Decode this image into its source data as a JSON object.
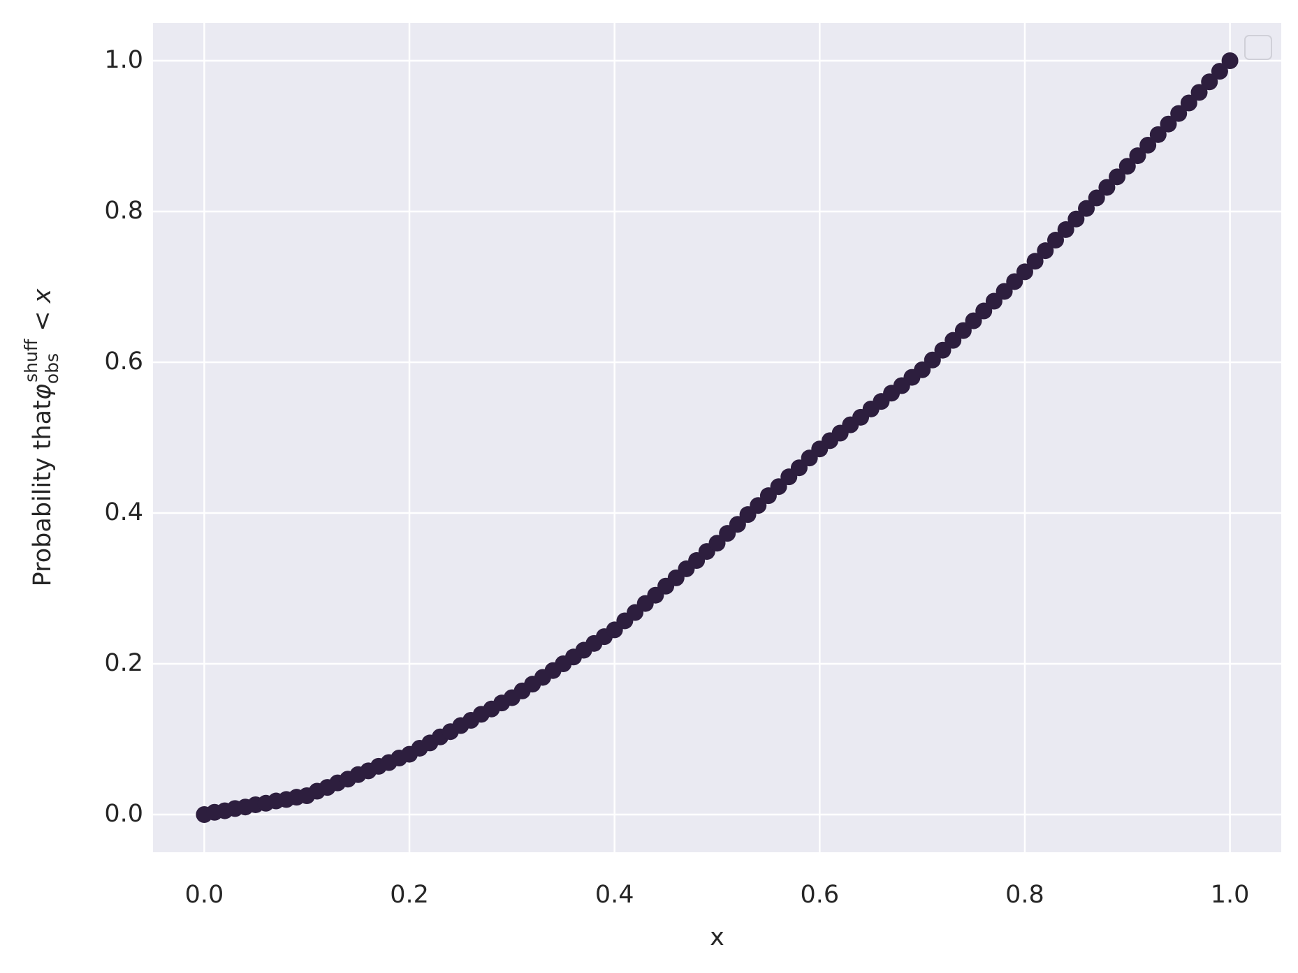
{
  "chart_data": {
    "type": "scatter",
    "xlabel": "x",
    "ylabel": {
      "text": "Probability that",
      "symbol": "φ",
      "sub": "obs",
      "sup": "shuff",
      "rest": " < x"
    },
    "x": [
      0,
      0.01,
      0.02,
      0.03,
      0.04,
      0.05,
      0.06,
      0.07,
      0.08,
      0.09,
      0.1,
      0.11,
      0.12,
      0.13,
      0.14,
      0.15,
      0.16,
      0.17,
      0.18,
      0.19,
      0.2,
      0.21,
      0.22,
      0.23,
      0.24,
      0.25,
      0.26,
      0.27,
      0.28,
      0.29,
      0.3,
      0.31,
      0.32,
      0.33,
      0.34,
      0.35,
      0.36,
      0.37,
      0.38,
      0.39,
      0.4,
      0.41,
      0.42,
      0.43,
      0.44,
      0.45,
      0.46,
      0.47,
      0.48,
      0.49,
      0.5,
      0.51,
      0.52,
      0.53,
      0.54,
      0.55,
      0.56,
      0.57,
      0.58,
      0.59,
      0.6,
      0.61,
      0.62,
      0.63,
      0.64,
      0.65,
      0.66,
      0.67,
      0.68,
      0.69,
      0.7,
      0.71,
      0.72,
      0.73,
      0.74,
      0.75,
      0.76,
      0.77,
      0.78,
      0.79,
      0.8,
      0.81,
      0.82,
      0.83,
      0.84,
      0.85,
      0.86,
      0.87,
      0.88,
      0.89,
      0.9,
      0.91,
      0.92,
      0.93,
      0.94,
      0.95,
      0.96,
      0.97,
      0.98,
      0.99,
      1
    ],
    "series": [
      {
        "color": "#2d1e3e",
        "values": [
          0,
          0.003,
          0.005,
          0.008,
          0.01,
          0.013,
          0.015,
          0.018,
          0.02,
          0.023,
          0.025,
          0.031,
          0.036,
          0.042,
          0.047,
          0.053,
          0.058,
          0.064,
          0.069,
          0.075,
          0.08,
          0.088,
          0.095,
          0.103,
          0.11,
          0.118,
          0.125,
          0.133,
          0.14,
          0.148,
          0.155,
          0.164,
          0.173,
          0.182,
          0.191,
          0.2,
          0.209,
          0.218,
          0.227,
          0.236,
          0.245,
          0.257,
          0.268,
          0.28,
          0.291,
          0.303,
          0.314,
          0.326,
          0.337,
          0.349,
          0.36,
          0.373,
          0.385,
          0.398,
          0.41,
          0.423,
          0.435,
          0.448,
          0.46,
          0.473,
          0.485,
          0.496,
          0.506,
          0.517,
          0.527,
          0.538,
          0.548,
          0.559,
          0.569,
          0.58,
          0.59,
          0.603,
          0.616,
          0.629,
          0.642,
          0.655,
          0.668,
          0.681,
          0.694,
          0.707,
          0.72,
          0.734,
          0.748,
          0.762,
          0.776,
          0.79,
          0.804,
          0.818,
          0.832,
          0.846,
          0.86,
          0.874,
          0.888,
          0.902,
          0.916,
          0.93,
          0.944,
          0.958,
          0.972,
          0.986,
          1
        ]
      }
    ],
    "xlim": [
      -0.05,
      1.05
    ],
    "ylim": [
      -0.05,
      1.05
    ],
    "xticks": [
      {
        "value": 0,
        "label": "0.0"
      },
      0.2,
      0.4,
      0.6,
      0.8,
      {
        "value": 1,
        "label": "1.0"
      }
    ],
    "yticks": [
      {
        "value": 0,
        "label": "0.0"
      },
      0.2,
      0.4,
      0.6,
      0.8,
      {
        "value": 1,
        "label": "1.0"
      }
    ],
    "grid": true,
    "legend": "upper right"
  }
}
